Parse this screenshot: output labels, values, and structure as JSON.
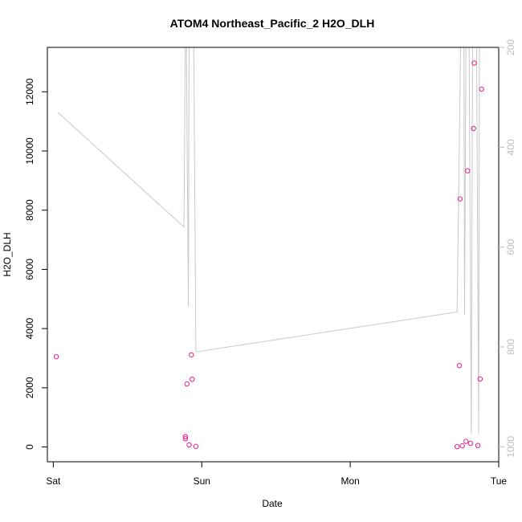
{
  "chart_data": {
    "type": "scatter",
    "title": "ATOM4 Northeast_Pacific_2 H2O_DLH",
    "xlabel": "Date",
    "ylabel": "H2O_DLH",
    "x_ticks": [
      {
        "label": "Sat",
        "day": 0
      },
      {
        "label": "Sun",
        "day": 1
      },
      {
        "label": "Mon",
        "day": 2
      },
      {
        "label": "Tue",
        "day": 3
      }
    ],
    "xlim_days": [
      -0.04,
      3.0
    ],
    "ylim": [
      -500,
      13500
    ],
    "y_ticks": [
      0,
      2000,
      4000,
      6000,
      8000,
      10000,
      12000
    ],
    "right_axis": {
      "ylim": [
        1030,
        200
      ],
      "ticks": [
        200,
        400,
        600,
        800,
        1000
      ],
      "series_color": "#c8c8c8"
    },
    "colors": {
      "points": "#e6208c",
      "secondary_line": "#c8c8c8"
    },
    "points": [
      {
        "day": 0.02,
        "value": 3050
      },
      {
        "day": 0.89,
        "value": 280
      },
      {
        "day": 0.89,
        "value": 350
      },
      {
        "day": 0.9,
        "value": 2130
      },
      {
        "day": 0.915,
        "value": 70
      },
      {
        "day": 0.93,
        "value": 3110
      },
      {
        "day": 0.935,
        "value": 2290
      },
      {
        "day": 0.96,
        "value": 20
      },
      {
        "day": 2.72,
        "value": 10
      },
      {
        "day": 2.735,
        "value": 2750
      },
      {
        "day": 2.74,
        "value": 8380
      },
      {
        "day": 2.755,
        "value": 40
      },
      {
        "day": 2.78,
        "value": 190
      },
      {
        "day": 2.79,
        "value": 9330
      },
      {
        "day": 2.81,
        "value": 120
      },
      {
        "day": 2.83,
        "value": 10760
      },
      {
        "day": 2.835,
        "value": 12970
      },
      {
        "day": 2.86,
        "value": 50
      },
      {
        "day": 2.875,
        "value": 2300
      },
      {
        "day": 2.885,
        "value": 12090
      }
    ],
    "secondary_series": [
      {
        "day": 0.03,
        "value": 330
      },
      {
        "day": 0.88,
        "value": 560
      },
      {
        "day": 0.89,
        "value": 150
      },
      {
        "day": 0.895,
        "value": 150
      },
      {
        "day": 0.91,
        "value": 720
      },
      {
        "day": 0.915,
        "value": 150
      },
      {
        "day": 0.945,
        "value": 150
      },
      {
        "day": 0.96,
        "value": 810
      },
      {
        "day": 2.72,
        "value": 730
      },
      {
        "day": 2.745,
        "value": 150
      },
      {
        "day": 2.765,
        "value": 150
      },
      {
        "day": 2.77,
        "value": 735
      },
      {
        "day": 2.78,
        "value": 150
      },
      {
        "day": 2.8,
        "value": 150
      },
      {
        "day": 2.815,
        "value": 975
      },
      {
        "day": 2.825,
        "value": 150
      },
      {
        "day": 2.85,
        "value": 150
      },
      {
        "day": 2.865,
        "value": 975
      },
      {
        "day": 2.87,
        "value": 150
      },
      {
        "day": 2.88,
        "value": 150
      }
    ]
  }
}
